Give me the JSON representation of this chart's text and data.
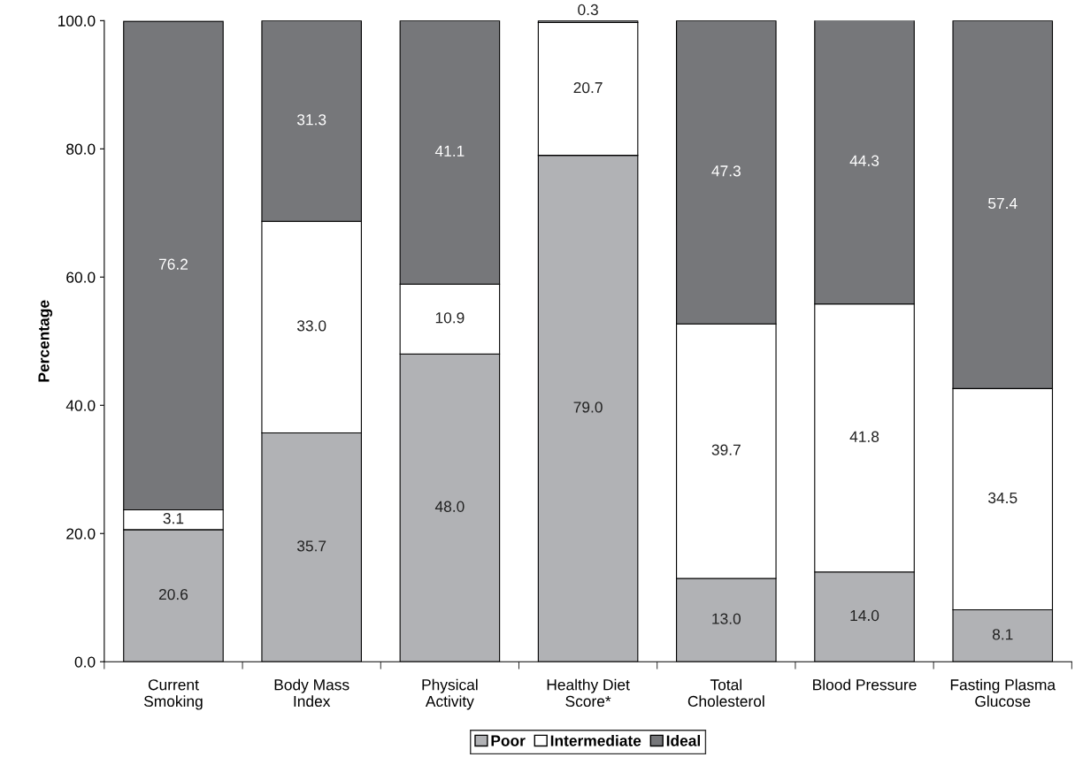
{
  "chart_data": {
    "type": "bar",
    "stacked": true,
    "ylabel": "Percentage",
    "categories": [
      "Current\nSmoking",
      "Body Mass\nIndex",
      "Physical\nActivity",
      "Healthy Diet\nScore*",
      "Total\nCholesterol",
      "Blood Pressure",
      "Fasting Plasma\nGlucose"
    ],
    "series": [
      {
        "name": "Poor",
        "color": "#b1b2b5",
        "values": [
          20.6,
          35.7,
          48.0,
          79.0,
          13.0,
          14.0,
          8.1
        ],
        "value_labels": [
          "20.6",
          "35.7",
          "48.0",
          "79.0",
          "13.0",
          "14.0",
          "8.1"
        ]
      },
      {
        "name": "Intermediate",
        "color": "#ffffff",
        "values": [
          3.1,
          33.0,
          10.9,
          20.7,
          39.7,
          41.8,
          34.5
        ],
        "value_labels": [
          "3.1",
          "33.0",
          "10.9",
          "20.7",
          "39.7",
          "41.8",
          "34.5"
        ]
      },
      {
        "name": "Ideal",
        "color": "#76777a",
        "values": [
          76.2,
          31.3,
          41.1,
          0.3,
          47.3,
          44.3,
          57.4
        ],
        "value_labels": [
          "76.2",
          "31.3",
          "41.1",
          "0.3",
          "47.3",
          "44.3",
          "57.4"
        ]
      }
    ],
    "ylim": [
      0,
      100
    ],
    "yticks": [
      {
        "value": 0,
        "label": "0.0"
      },
      {
        "value": 20,
        "label": "20.0"
      },
      {
        "value": 40,
        "label": "40.0"
      },
      {
        "value": 60,
        "label": "60.0"
      },
      {
        "value": 80,
        "label": "80.0"
      },
      {
        "value": 100,
        "label": "100.0"
      }
    ],
    "grid": false,
    "legend": "bottom"
  }
}
